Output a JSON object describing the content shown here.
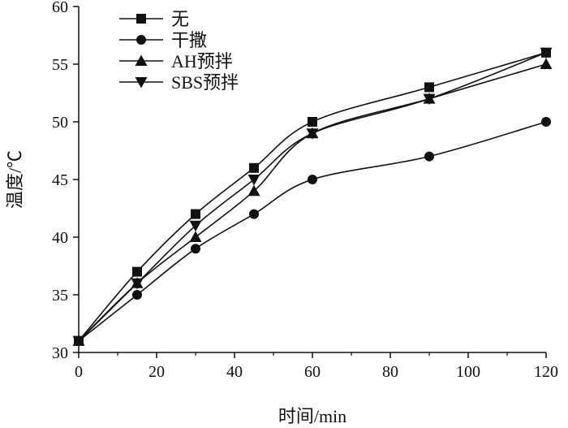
{
  "chart_data": {
    "type": "line",
    "xlabel": "时间/min",
    "ylabel": "温度/℃",
    "xlim": [
      0,
      120
    ],
    "ylim": [
      30,
      60
    ],
    "xticks": [
      0,
      20,
      40,
      60,
      80,
      100,
      120
    ],
    "yticks": [
      30,
      35,
      40,
      45,
      50,
      55,
      60
    ],
    "grid": false,
    "legend_position": "top-left",
    "x": [
      0,
      15,
      30,
      45,
      60,
      90,
      120
    ],
    "series": [
      {
        "name": "无",
        "marker": "square",
        "values": [
          31,
          37,
          42,
          46,
          50,
          53,
          56
        ]
      },
      {
        "name": "干撒",
        "marker": "circle",
        "values": [
          31,
          35,
          39,
          42,
          45,
          47,
          50
        ]
      },
      {
        "name": "AH预拌",
        "marker": "triangle-up",
        "values": [
          31,
          36,
          40,
          44,
          49,
          52,
          55
        ]
      },
      {
        "name": "SBS预拌",
        "marker": "triangle-down",
        "values": [
          31,
          36,
          41,
          45,
          49,
          52,
          56
        ]
      }
    ]
  }
}
